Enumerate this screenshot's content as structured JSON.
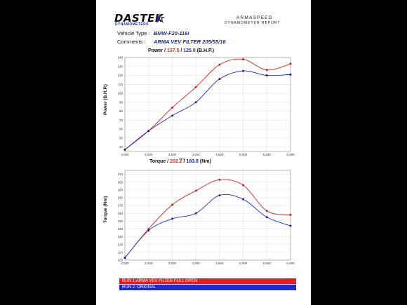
{
  "brand": {
    "logo_word": "DASTEK",
    "logo_sub": "DYNAMOMETERS",
    "name": "ARMASPEED",
    "report_title": "DYNAMOMETER REPORT"
  },
  "meta": {
    "vehicle_label": "Vehicle Type :",
    "vehicle_value": "BMW-F20-116i",
    "comments_label": "Comments :",
    "comments_value": "ARMA VEV FILTER 205/55/16"
  },
  "colors": {
    "run1": "#e02020",
    "run2": "#1a2acc"
  },
  "legend": {
    "run1": "RUN 1:ARMA VEV FILTER FULL OPEN",
    "run2": "RUN 2: ORIGNAL"
  },
  "chart_data": [
    {
      "type": "line",
      "title": "Power",
      "title_sep1": " / ",
      "peak_run1": "137.5",
      "title_sep2": " / ",
      "peak_run2": "125.0",
      "unit": "(B.H.P.)",
      "ylabel": "Power (B.H.P.)",
      "xlabel": "RPM",
      "xlim": [
        2500,
        6000
      ],
      "ylim": [
        35,
        140
      ],
      "x_ticks": [
        "2,500",
        "3,000",
        "3,500",
        "4,000",
        "4,500",
        "5,000",
        "5,500",
        "6,000"
      ],
      "y_ticks": [
        "40",
        "50",
        "60",
        "70",
        "80",
        "90",
        "100",
        "110",
        "120",
        "130",
        "140"
      ],
      "y_tick_values": [
        40,
        50,
        60,
        70,
        80,
        90,
        100,
        110,
        120,
        130,
        140
      ],
      "grid": true,
      "series": [
        {
          "name": "RUN 1:ARMA VEV FILTER FULL OPEN",
          "x": [
            2500,
            3000,
            3500,
            4000,
            4500,
            5000,
            5500,
            6000
          ],
          "y": [
            37,
            58,
            84,
            107,
            132,
            138,
            126,
            133
          ]
        },
        {
          "name": "RUN 2: ORIGNAL",
          "x": [
            2500,
            3000,
            3500,
            4000,
            4500,
            5000,
            5500,
            6000
          ],
          "y": [
            37,
            58,
            75,
            90,
            116,
            125,
            120,
            121
          ]
        }
      ]
    },
    {
      "type": "line",
      "title": "Torque",
      "title_sep1": " / ",
      "peak_run1": "202.2",
      "title_sep2": " / ",
      "peak_run2": "183.8",
      "unit": "(Nm)",
      "ylabel": "Torque (Nm)",
      "xlabel": "",
      "xlim": [
        2500,
        6000
      ],
      "ylim": [
        100,
        215
      ],
      "x_ticks": [
        "2,500",
        "3,000",
        "3,500",
        "4,000",
        "4,500",
        "5,000",
        "5,500",
        "6,000"
      ],
      "y_ticks": [
        "100",
        "110",
        "120",
        "130",
        "140",
        "150",
        "160",
        "170",
        "180",
        "190",
        "200",
        "210"
      ],
      "y_tick_values": [
        100,
        110,
        120,
        130,
        140,
        150,
        160,
        170,
        180,
        190,
        200,
        210
      ],
      "grid": true,
      "series": [
        {
          "name": "RUN 1:ARMA VEV FILTER FULL OPEN",
          "x": [
            2500,
            3000,
            3500,
            4000,
            4500,
            5000,
            5500,
            6000
          ],
          "y": [
            103,
            140,
            171,
            189,
            203,
            196,
            163,
            158
          ]
        },
        {
          "name": "RUN 2: ORIGNAL",
          "x": [
            2500,
            3000,
            3500,
            4000,
            4500,
            5000,
            5500,
            6000
          ],
          "y": [
            103,
            138,
            153,
            160,
            183,
            178,
            155,
            144
          ]
        }
      ]
    }
  ]
}
